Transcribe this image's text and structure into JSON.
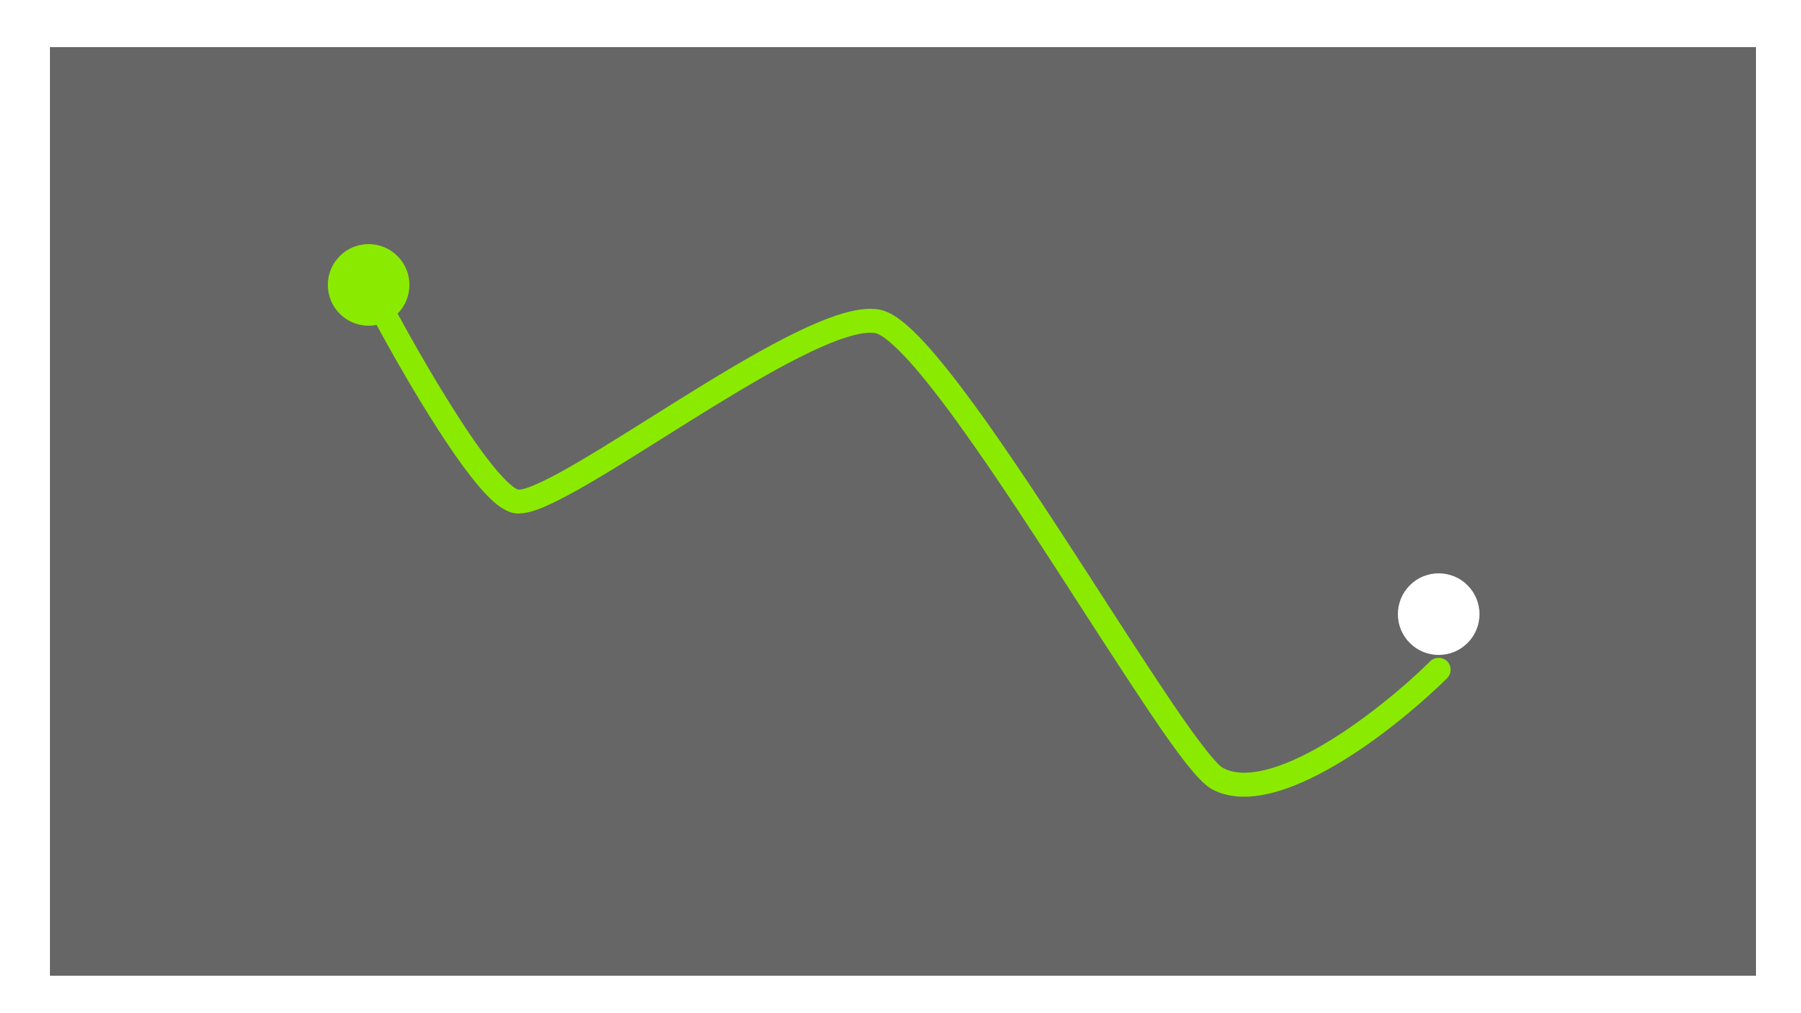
{
  "canvas": {
    "background_color": "#666666",
    "page_background_color": "#ffffff"
  },
  "drag_path": {
    "color": "#8aeb00",
    "start_point_color": "#8aeb00",
    "end_point_color": "#ffffff",
    "start_icon": "start-dot-icon",
    "end_icon": "end-dot-icon"
  }
}
